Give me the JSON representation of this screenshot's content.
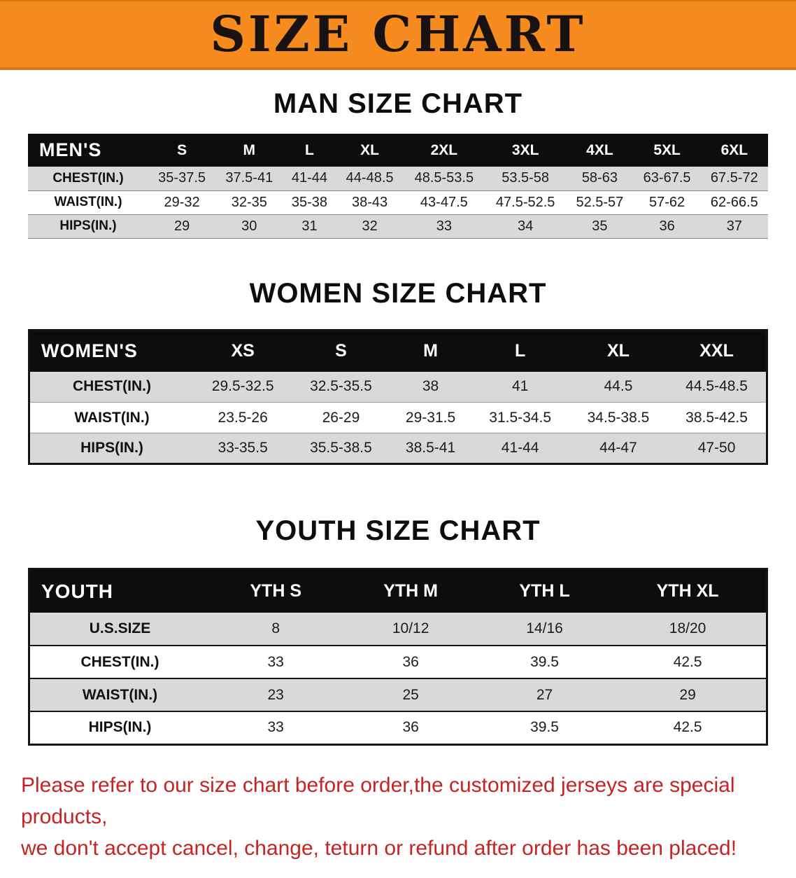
{
  "banner": {
    "title": "SIZE CHART",
    "bg": "#f68b1f"
  },
  "sections": [
    {
      "id": "men",
      "heading": "MAN SIZE CHART",
      "header": [
        "MEN'S",
        "S",
        "M",
        "L",
        "XL",
        "2XL",
        "3XL",
        "4XL",
        "5XL",
        "6XL"
      ],
      "rows": [
        [
          "CHEST(IN.)",
          "35-37.5",
          "37.5-41",
          "41-44",
          "44-48.5",
          "48.5-53.5",
          "53.5-58",
          "58-63",
          "63-67.5",
          "67.5-72"
        ],
        [
          "WAIST(IN.)",
          "29-32",
          "32-35",
          "35-38",
          "38-43",
          "43-47.5",
          "47.5-52.5",
          "52.5-57",
          "57-62",
          "62-66.5"
        ],
        [
          "HIPS(IN.)",
          "29",
          "30",
          "31",
          "32",
          "33",
          "34",
          "35",
          "36",
          "37"
        ]
      ]
    },
    {
      "id": "women",
      "heading": "WOMEN SIZE CHART",
      "header": [
        "WOMEN'S",
        "XS",
        "S",
        "M",
        "L",
        "XL",
        "XXL"
      ],
      "rows": [
        [
          "CHEST(IN.)",
          "29.5-32.5",
          "32.5-35.5",
          "38",
          "41",
          "44.5",
          "44.5-48.5"
        ],
        [
          "WAIST(IN.)",
          "23.5-26",
          "26-29",
          "29-31.5",
          "31.5-34.5",
          "34.5-38.5",
          "38.5-42.5"
        ],
        [
          "HIPS(IN.)",
          "33-35.5",
          "35.5-38.5",
          "38.5-41",
          "41-44",
          "44-47",
          "47-50"
        ]
      ]
    },
    {
      "id": "youth",
      "heading": "YOUTH SIZE CHART",
      "header": [
        "YOUTH",
        "YTH S",
        "YTH M",
        "YTH L",
        "YTH XL"
      ],
      "rows": [
        [
          "U.S.SIZE",
          "8",
          "10/12",
          "14/16",
          "18/20"
        ],
        [
          "CHEST(IN.)",
          "33",
          "36",
          "39.5",
          "42.5"
        ],
        [
          "WAIST(IN.)",
          "23",
          "25",
          "27",
          "29"
        ],
        [
          "HIPS(IN.)",
          "33",
          "36",
          "39.5",
          "42.5"
        ]
      ]
    }
  ],
  "footer": {
    "color": "#c82323",
    "lines": [
      "Please refer to our size chart before order,the customized jerseys are special products,",
      "we don't accept cancel, change, teturn or refund after order has been placed!"
    ]
  }
}
